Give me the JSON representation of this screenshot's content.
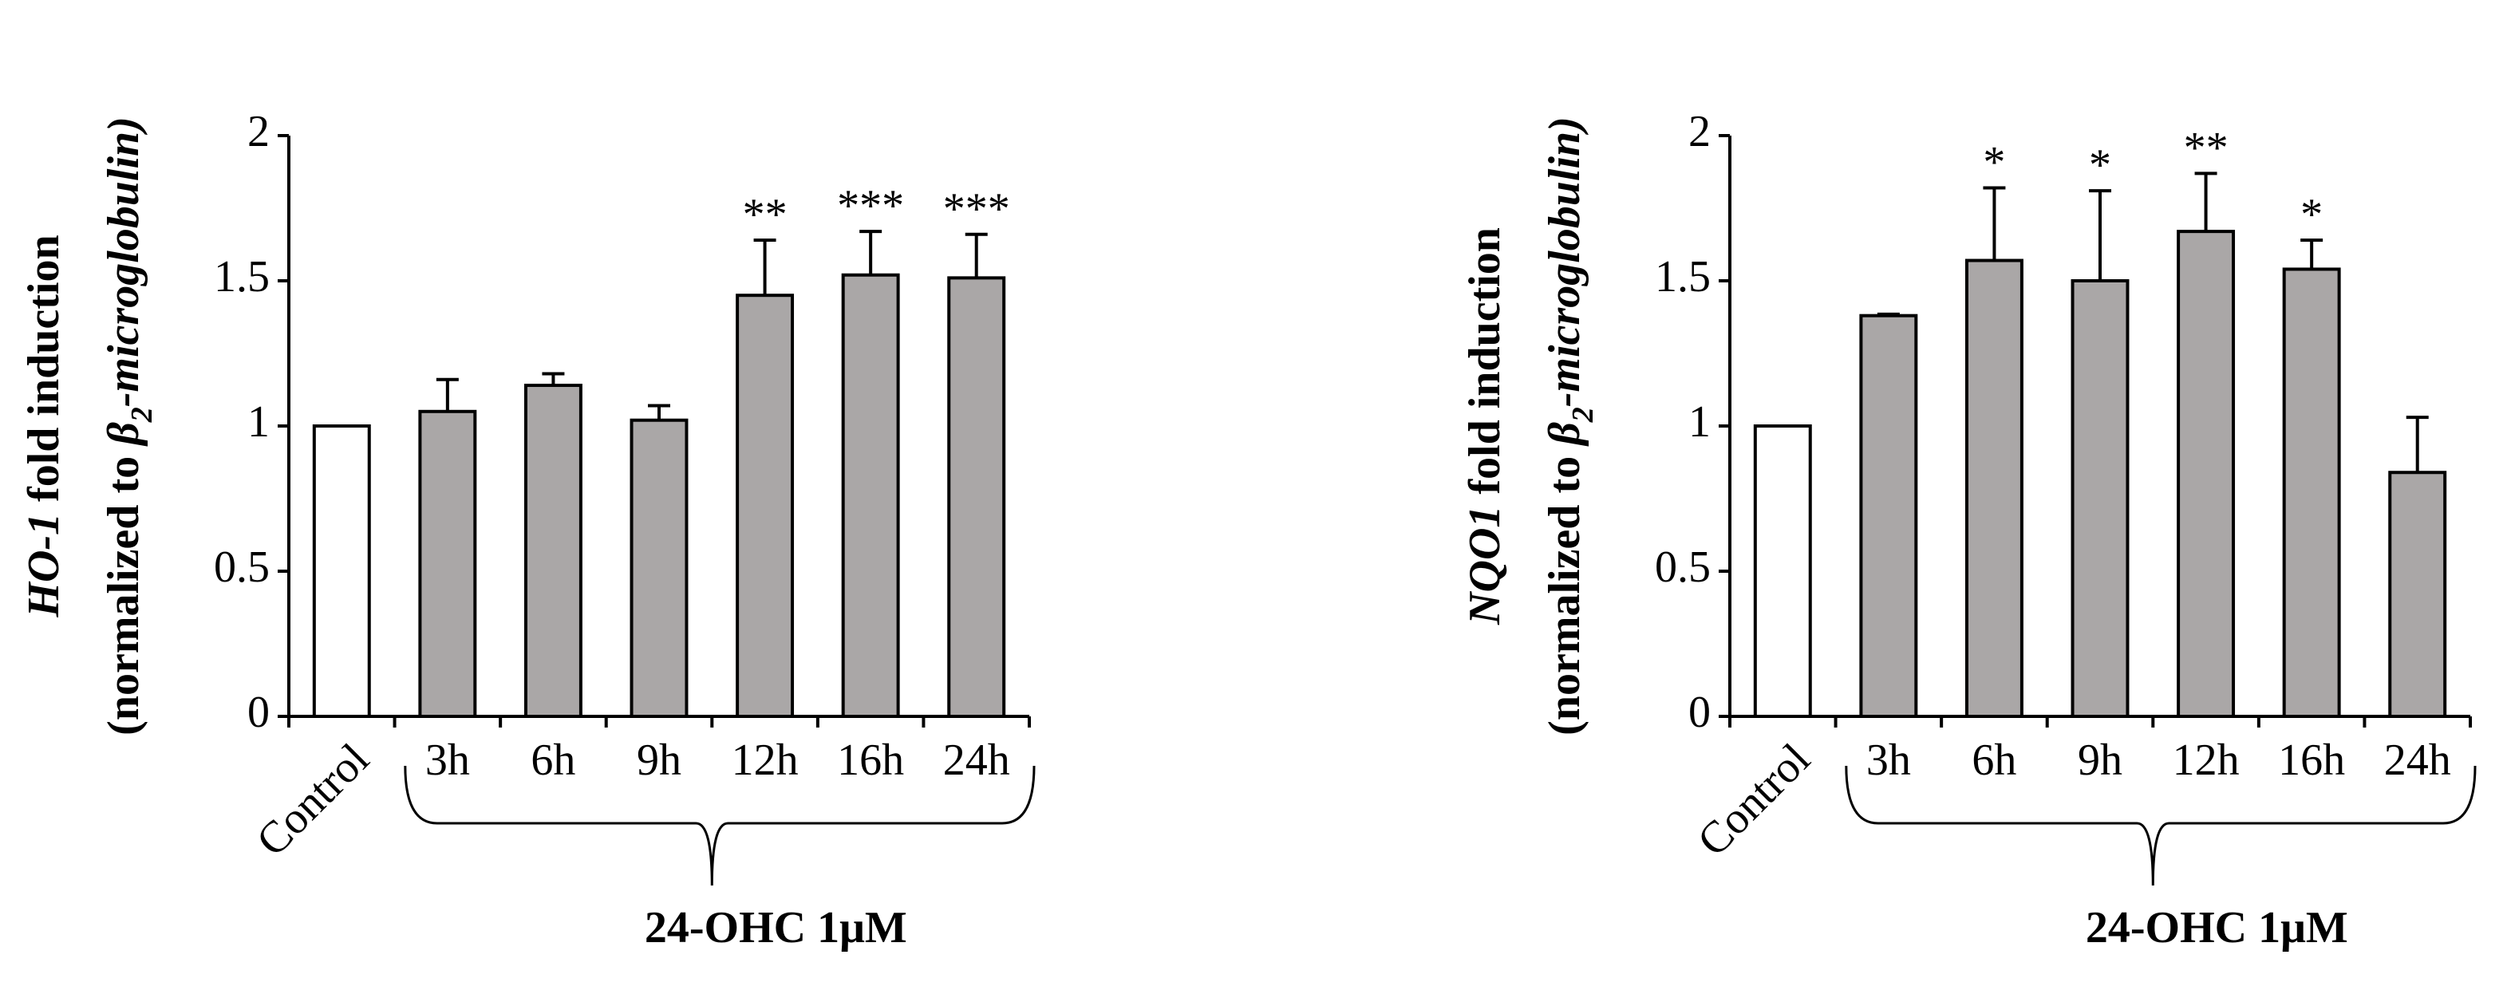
{
  "chart_data": [
    {
      "type": "bar",
      "y_label": [
        "HO-1",
        " fold induction"
      ],
      "y_label_2": [
        "(normalized to ",
        "β",
        "2",
        "-microglobulin)"
      ],
      "categories": [
        "Control",
        "3h",
        "6h",
        "9h",
        "12h",
        "16h",
        "24h"
      ],
      "values": [
        1.0,
        1.05,
        1.14,
        1.02,
        1.45,
        1.52,
        1.51
      ],
      "errors": [
        null,
        0.11,
        0.04,
        0.05,
        0.19,
        0.15,
        0.15
      ],
      "significance": [
        null,
        null,
        null,
        null,
        "**",
        "***",
        "***"
      ],
      "colors": [
        "#ffffff",
        "#aaa7a7",
        "#aaa7a7",
        "#aaa7a7",
        "#aaa7a7",
        "#aaa7a7",
        "#aaa7a7"
      ],
      "group_label": "24-OHC 1μM",
      "ylim": [
        0,
        2
      ],
      "yticks": [
        0,
        0.5,
        1,
        1.5,
        2
      ]
    },
    {
      "type": "bar",
      "y_label": [
        "NQO1",
        " fold induction"
      ],
      "y_label_2": [
        "(normalized to ",
        "β",
        "2",
        "-microglobulin)"
      ],
      "categories": [
        "Control",
        "3h",
        "6h",
        "9h",
        "12h",
        "16h",
        "24h"
      ],
      "values": [
        1.0,
        1.38,
        1.57,
        1.5,
        1.67,
        1.54,
        0.84
      ],
      "errors": [
        null,
        0.005,
        0.25,
        0.31,
        0.2,
        0.1,
        0.19
      ],
      "significance": [
        null,
        null,
        "*",
        "*",
        "**",
        "*",
        null
      ],
      "colors": [
        "#ffffff",
        "#aaa7a7",
        "#aaa7a7",
        "#aaa7a7",
        "#aaa7a7",
        "#aaa7a7",
        "#aaa7a7"
      ],
      "group_label": "24-OHC 1μM",
      "ylim": [
        0,
        2
      ],
      "yticks": [
        0,
        0.5,
        1,
        1.5,
        2
      ]
    }
  ]
}
